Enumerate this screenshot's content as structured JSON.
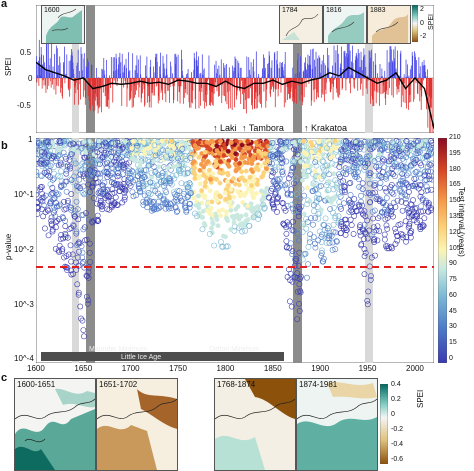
{
  "panels": {
    "a": "a",
    "b": "b",
    "c": "c"
  },
  "panel_a": {
    "ylabel": "SPEI",
    "yticks": [
      "0.5",
      "0",
      "-0.5"
    ],
    "inset_years": [
      "1600",
      "1784",
      "1816",
      "1883"
    ],
    "colorbar_label": "SPEI",
    "colorbar_ticks": [
      "2",
      "0",
      "-2"
    ]
  },
  "panel_b": {
    "ylabel": "p-value",
    "yticks": [
      "1",
      "10^-1",
      "10^-2",
      "10^-3",
      "10^-4"
    ],
    "xticks": [
      "1600",
      "1650",
      "1700",
      "1750",
      "1800",
      "1850",
      "1900",
      "1950",
      "2000"
    ],
    "volcanoes": [
      "↑ Laki",
      "↑ Tambora",
      "↑ Krakatoa"
    ],
    "annotations": [
      "Maunder Minimum",
      "Dalton Minimum",
      "Little Ice Age"
    ],
    "colorbar_label": "Test interval (years)",
    "colorbar_ticks": [
      "210",
      "195",
      "180",
      "165",
      "150",
      "135",
      "120",
      "105",
      "90",
      "75",
      "60",
      "45",
      "30",
      "15",
      "0"
    ],
    "significance_line": 0.005
  },
  "panel_c": {
    "maps": [
      "1600-1651",
      "1651-1702",
      "1768-1874",
      "1874-1981"
    ],
    "colorbar_label": "SPEI",
    "colorbar_ticks": [
      "0.4",
      "0.2",
      "0",
      "-0.2",
      "-0.4",
      "-0.6"
    ]
  },
  "colors": {
    "positive": "#4a4ae6",
    "negative": "#e03030",
    "smooth_line": "#000000",
    "threshold": "#e02020",
    "gray_band": "#8c8c8c",
    "light_band": "#d9d9d9"
  },
  "chart_data": [
    {
      "type": "line",
      "panel": "a",
      "ylabel": "SPEI",
      "xlim": [
        1600,
        2020
      ],
      "ylim": [
        -0.55,
        0.55
      ],
      "series": [
        {
          "x": [
            1600,
            1610,
            1620,
            1630,
            1640,
            1650,
            1660,
            1670,
            1680,
            1690,
            1700,
            1710,
            1720,
            1730,
            1740,
            1750,
            1760,
            1770,
            1780,
            1790,
            1800,
            1810,
            1820,
            1830,
            1840,
            1850,
            1860,
            1870,
            1880,
            1890,
            1900,
            1910,
            1920,
            1930,
            1940,
            1950,
            1960,
            1970,
            1980,
            1990,
            2000,
            2010,
            2020
          ],
          "values": [
            0.15,
            0.08,
            0.05,
            0.02,
            -0.02,
            0.0,
            -0.1,
            -0.08,
            -0.05,
            -0.06,
            -0.05,
            -0.03,
            -0.05,
            -0.04,
            -0.06,
            -0.02,
            -0.03,
            -0.05,
            -0.05,
            -0.08,
            -0.03,
            -0.08,
            -0.1,
            -0.05,
            -0.05,
            -0.02,
            -0.06,
            -0.03,
            -0.05,
            -0.02,
            0.0,
            0.05,
            0.02,
            0.1,
            0.05,
            0.0,
            -0.05,
            -0.02,
            0.05,
            -0.1,
            0.0,
            -0.1,
            -0.48
          ]
        }
      ]
    },
    {
      "type": "scatter",
      "panel": "b",
      "xlabel": "",
      "ylabel": "p-value",
      "xlim": [
        1600,
        2020
      ],
      "ylim": [
        0.0001,
        1
      ],
      "yscale": "log",
      "colorbar": {
        "label": "Test interval (years)",
        "range": [
          0,
          210
        ]
      },
      "threshold": 0.005,
      "shaded_periods": [
        [
          1645,
          1655
        ],
        [
          1870,
          1880
        ],
        [
          1947,
          1955
        ],
        [
          1630,
          1636
        ]
      ],
      "annotations": [
        "Maunder Minimum",
        "Dalton Minimum",
        "Little Ice Age",
        "↑ Laki",
        "↑ Tambora",
        "↑ Krakatoa"
      ],
      "envelope_x": [
        1600,
        1610,
        1620,
        1630,
        1640,
        1645,
        1650,
        1655,
        1660,
        1670,
        1680,
        1700,
        1720,
        1740,
        1760,
        1780,
        1790,
        1800,
        1810,
        1820,
        1830,
        1840,
        1850,
        1860,
        1870,
        1880,
        1890,
        1900,
        1910,
        1920,
        1930,
        1940,
        1950,
        1960,
        1980,
        2000,
        2020
      ],
      "envelope_min_p": [
        0.05,
        0.02,
        0.01,
        0.005,
        0.003,
        0.001,
        0.0002,
        0.001,
        0.02,
        0.05,
        0.05,
        0.1,
        0.05,
        0.05,
        0.05,
        0.02,
        0.01,
        0.01,
        0.02,
        0.02,
        0.03,
        0.05,
        0.05,
        0.05,
        0.0003,
        0.0002,
        0.02,
        0.005,
        0.01,
        0.01,
        0.02,
        0.02,
        0.001,
        0.01,
        0.01,
        0.02,
        0.03
      ]
    }
  ]
}
